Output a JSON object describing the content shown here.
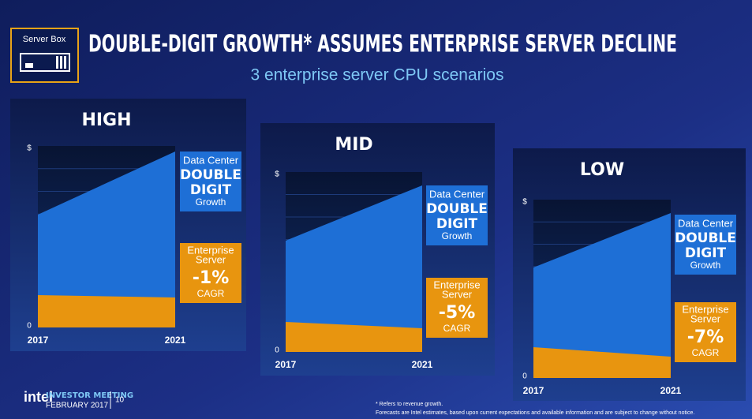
{
  "header": {
    "badge": "Server Box",
    "title": "DOUBLE-DIGIT GROWTH* ASSUMES ENTERPRISE SERVER DECLINE",
    "subtitle": "3 enterprise server CPU scenarios"
  },
  "panels": [
    {
      "title": "HIGH",
      "y_top": "$",
      "y_bottom": "0",
      "x_start": "2017",
      "x_end": "2021",
      "dc_label": [
        "Data Center",
        "DOUBLE",
        "DIGIT",
        "Growth"
      ],
      "es_label": [
        "Enterprise",
        "Server",
        "-1%",
        "CAGR"
      ]
    },
    {
      "title": "MID",
      "y_top": "$",
      "y_bottom": "0",
      "x_start": "2017",
      "x_end": "2021",
      "dc_label": [
        "Data Center",
        "DOUBLE",
        "DIGIT",
        "Growth"
      ],
      "es_label": [
        "Enterprise",
        "Server",
        "-5%",
        "CAGR"
      ]
    },
    {
      "title": "LOW",
      "y_top": "$",
      "y_bottom": "0",
      "x_start": "2017",
      "x_end": "2021",
      "dc_label": [
        "Data Center",
        "DOUBLE",
        "DIGIT",
        "Growth"
      ],
      "es_label": [
        "Enterprise",
        "Server",
        "-7%",
        "CAGR"
      ]
    }
  ],
  "footer": {
    "brand": "intel",
    "event": "INVESTOR MEETING",
    "date": "FEBRUARY 2017",
    "page": "10",
    "notes": [
      "* Refers to revenue growth.",
      "Forecasts are Intel estimates, based upon current expectations and available information and are subject to change without notice."
    ]
  }
}
